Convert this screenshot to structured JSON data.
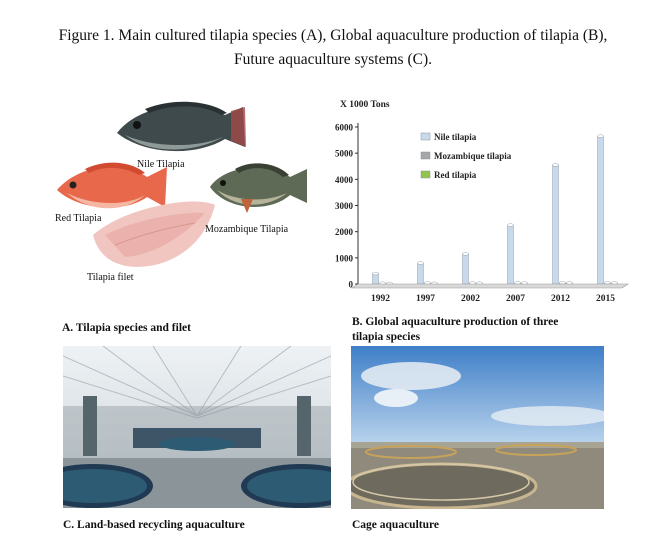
{
  "caption": {
    "line1": "Figure 1. Main cultured tilapia species (A), Global aquaculture production of tilapia (B),",
    "line2": "Future aquaculture systems (C)."
  },
  "panel_a": {
    "label": "A. Tilapia species and filet",
    "fish": {
      "nile": "Nile Tilapia",
      "red": "Red Tilapia",
      "mozambique": "Mozambique Tilapia",
      "filet": "Tilapia filet"
    }
  },
  "panel_b": {
    "label_line1": "B. Global aquaculture production of  three",
    "label_line2": "tilapia species"
  },
  "panel_c": {
    "label": "C. Land-based recycling aquaculture"
  },
  "panel_d": {
    "label": "Cage aquaculture"
  },
  "chart_data": {
    "type": "bar",
    "unit_label": "X 1000  Tons",
    "categories": [
      "1992",
      "1997",
      "2002",
      "2007",
      "2012",
      "2015"
    ],
    "ylim": [
      0,
      6000
    ],
    "yticks": [
      "0",
      "1000",
      "2000",
      "3000",
      "4000",
      "5000",
      "6000"
    ],
    "legend_position": "top-left",
    "series": [
      {
        "name": "Nile tilapia",
        "color": "#c9d9ec",
        "values": [
          400,
          800,
          1150,
          2250,
          4550,
          5650
        ]
      },
      {
        "name": "Mozambique tilapia",
        "color": "#a6a6a6",
        "values": [
          30,
          40,
          40,
          45,
          50,
          50
        ]
      },
      {
        "name": "Red tilapia",
        "color": "#8fc64a",
        "values": [
          20,
          25,
          30,
          35,
          40,
          40
        ]
      }
    ]
  }
}
